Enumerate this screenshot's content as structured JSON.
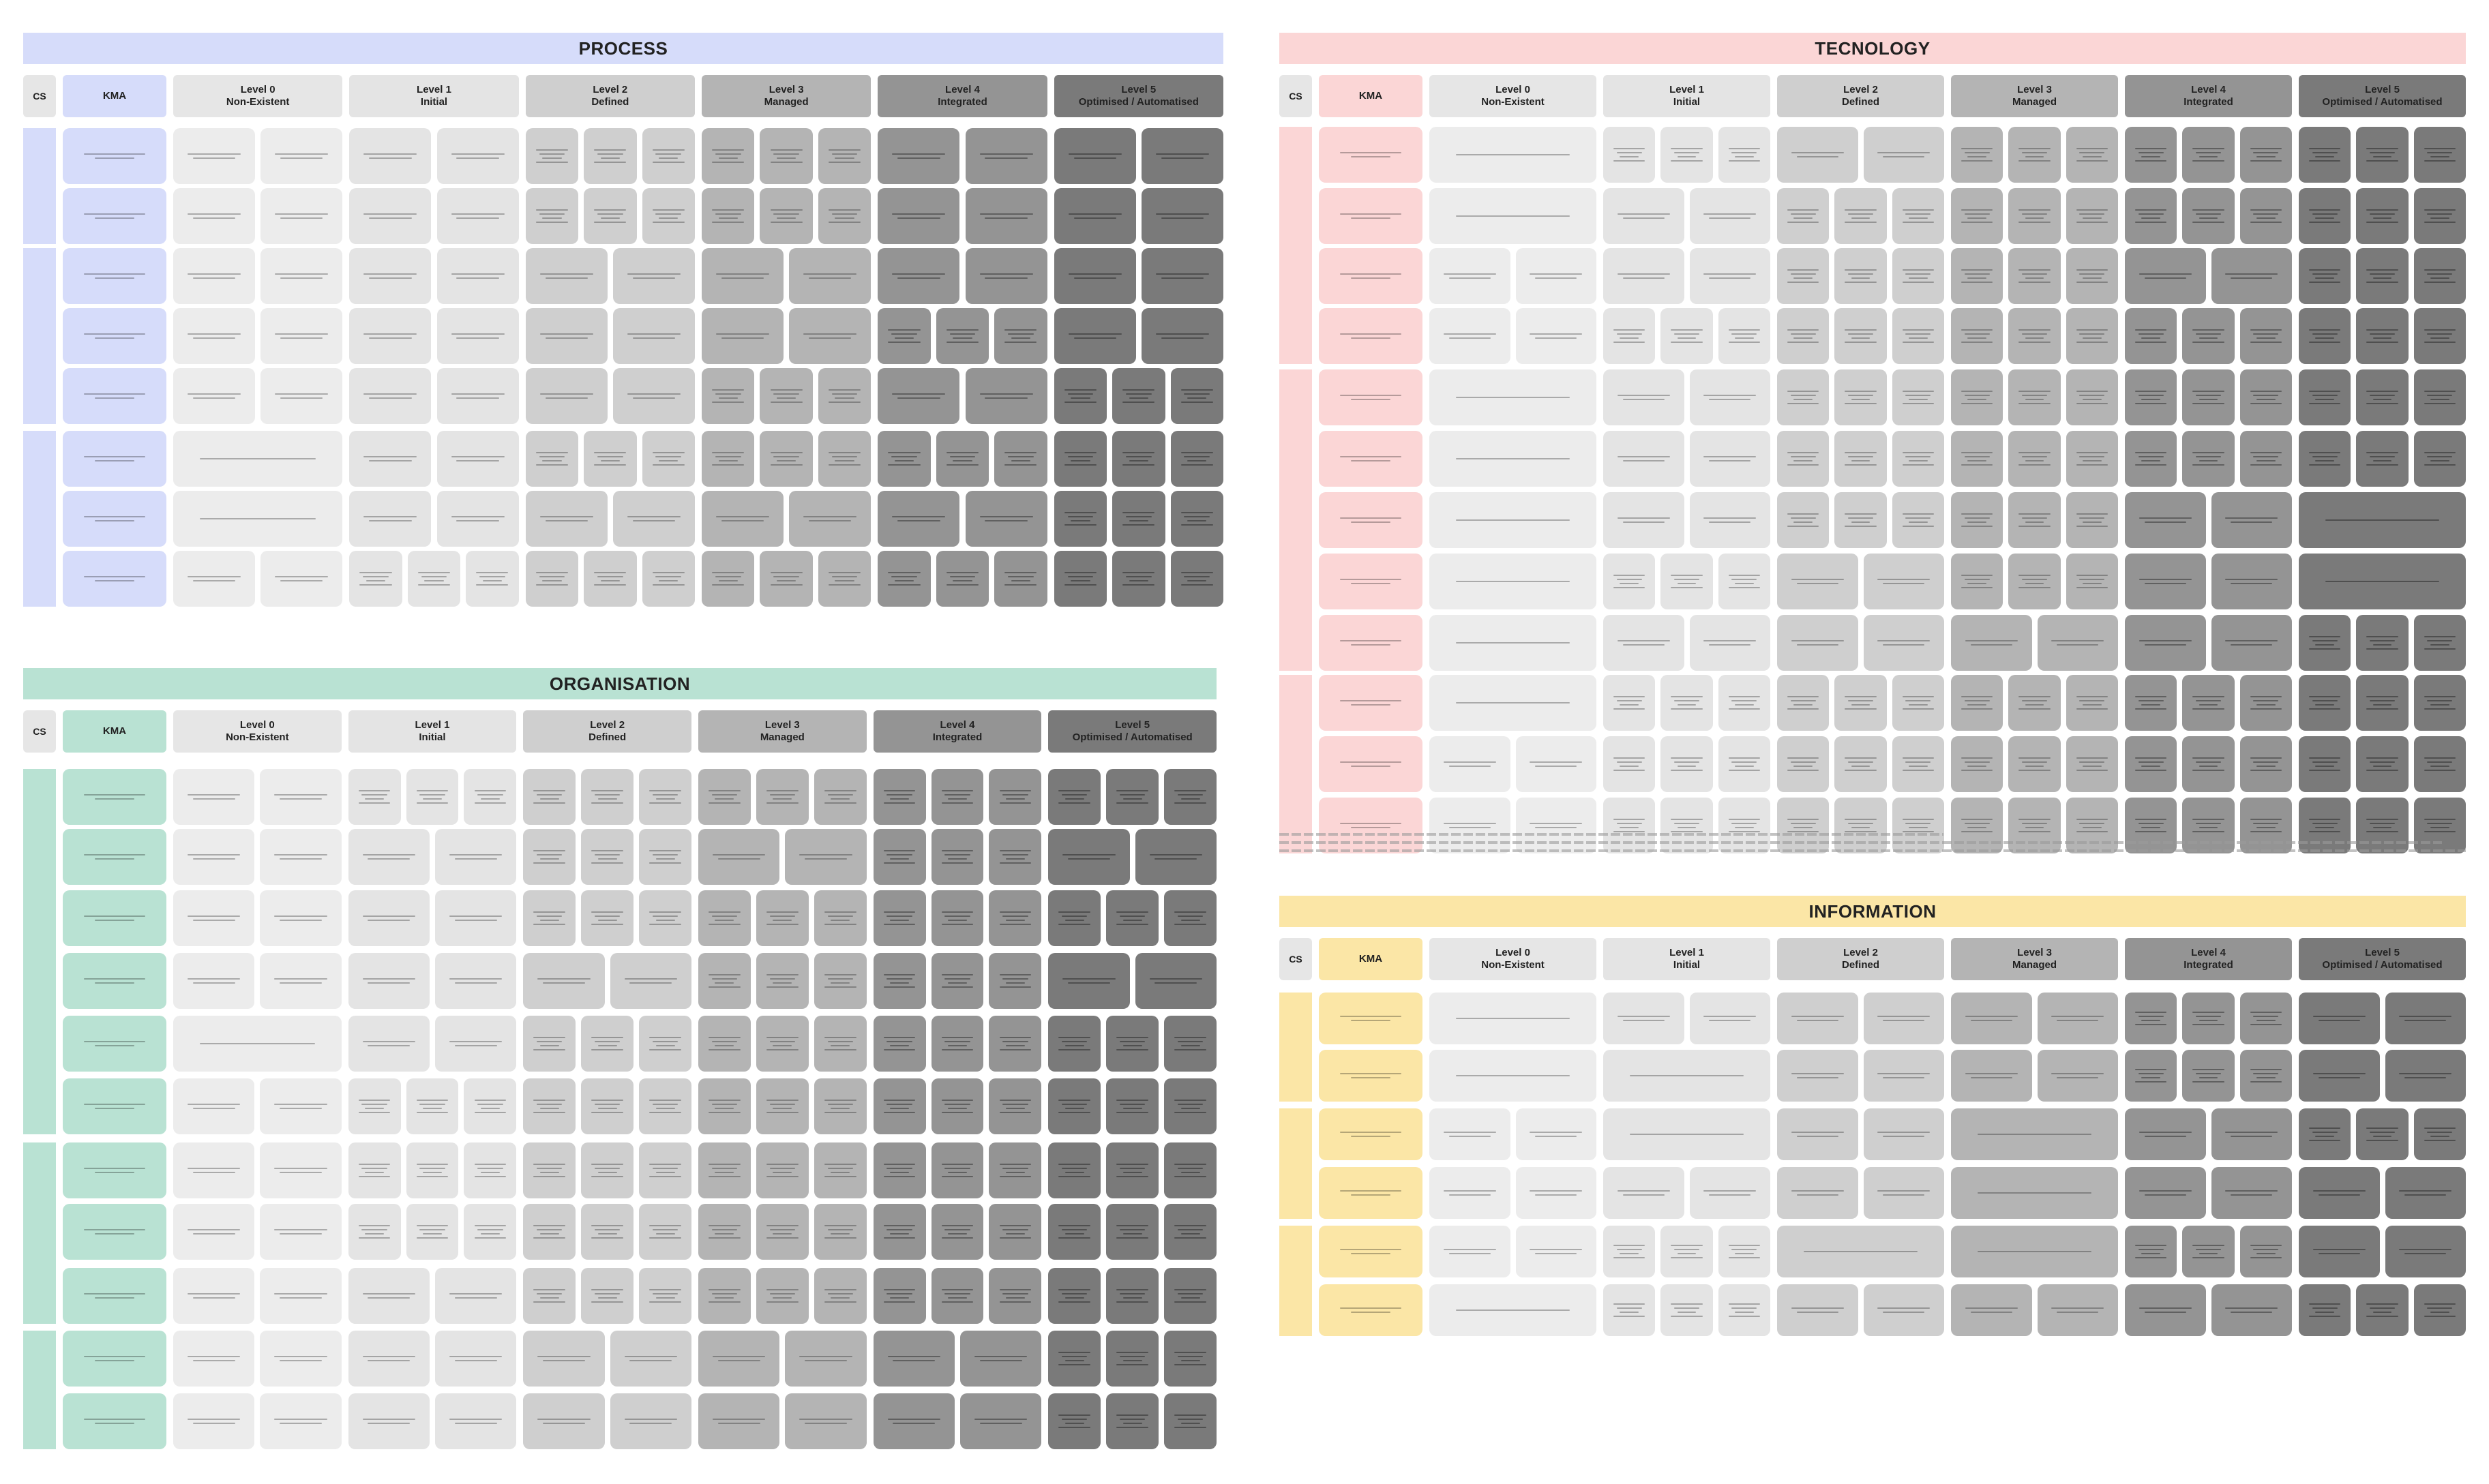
{
  "colors": {
    "process": "#d6dcfa",
    "organisation": "#b9e2d3",
    "technology": "#fbd6d6",
    "information": "#fbe6a6",
    "level_fills": [
      "#ececec",
      "#e4e4e4",
      "#cfcfcf",
      "#b4b4b4",
      "#949494",
      "#7a7a7a"
    ]
  },
  "header": {
    "cs": "CS",
    "kma": "KMA",
    "levels": [
      {
        "name": "Level 0",
        "sub": "Non-Existent"
      },
      {
        "name": "Level 1",
        "sub": "Initial"
      },
      {
        "name": "Level 2",
        "sub": "Defined"
      },
      {
        "name": "Level 3",
        "sub": "Managed"
      },
      {
        "name": "Level 4",
        "sub": "Integrated"
      },
      {
        "name": "Level 5",
        "sub": "Optimised / Automatised"
      }
    ]
  },
  "panels": [
    {
      "id": "process",
      "title": "PROCESS",
      "color_key": "process",
      "cs_groups": [
        2,
        3,
        3
      ],
      "cell_counts": [
        [
          2,
          2,
          3,
          3,
          2,
          2
        ],
        [
          2,
          2,
          3,
          3,
          2,
          2
        ],
        [
          2,
          2,
          2,
          2,
          2,
          2
        ],
        [
          2,
          2,
          2,
          2,
          3,
          2
        ],
        [
          2,
          2,
          2,
          3,
          2,
          3
        ],
        [
          1,
          2,
          3,
          3,
          3,
          3
        ],
        [
          1,
          2,
          2,
          2,
          2,
          3
        ],
        [
          2,
          3,
          3,
          3,
          3,
          3
        ]
      ]
    },
    {
      "id": "organisation",
      "title": "ORGANISATION",
      "color_key": "organisation",
      "cs_groups": [
        6,
        3,
        2
      ],
      "cell_counts": [
        [
          2,
          3,
          3,
          3,
          3,
          3
        ],
        [
          2,
          2,
          3,
          2,
          3,
          2
        ],
        [
          2,
          2,
          3,
          3,
          3,
          3
        ],
        [
          2,
          2,
          2,
          3,
          3,
          2
        ],
        [
          1,
          2,
          3,
          3,
          3,
          3
        ],
        [
          2,
          3,
          3,
          3,
          3,
          3
        ],
        [
          2,
          3,
          3,
          3,
          3,
          3
        ],
        [
          2,
          3,
          3,
          3,
          3,
          3
        ],
        [
          2,
          2,
          3,
          3,
          3,
          3
        ],
        [
          2,
          2,
          2,
          2,
          2,
          3
        ],
        [
          2,
          2,
          2,
          2,
          2,
          3
        ]
      ]
    },
    {
      "id": "technology",
      "title": "TECNOLOGY",
      "color_key": "technology",
      "cs_groups": [
        4,
        5,
        3
      ],
      "cell_counts": [
        [
          1,
          3,
          2,
          3,
          3,
          3
        ],
        [
          1,
          2,
          3,
          3,
          3,
          3
        ],
        [
          2,
          2,
          3,
          3,
          2,
          3
        ],
        [
          2,
          3,
          3,
          3,
          3,
          3
        ],
        [
          1,
          2,
          3,
          3,
          3,
          3
        ],
        [
          1,
          2,
          3,
          3,
          3,
          3
        ],
        [
          1,
          2,
          3,
          3,
          2,
          1
        ],
        [
          1,
          3,
          2,
          3,
          2,
          1
        ],
        [
          1,
          2,
          2,
          2,
          2,
          3
        ],
        [
          1,
          3,
          3,
          3,
          3,
          3
        ],
        [
          2,
          3,
          3,
          3,
          3,
          3
        ],
        [
          2,
          3,
          3,
          3,
          3,
          3
        ]
      ]
    },
    {
      "id": "information",
      "title": "INFORMATION",
      "color_key": "information",
      "cs_groups": [
        2,
        2,
        2
      ],
      "cell_counts": [
        [
          1,
          2,
          2,
          2,
          3,
          2
        ],
        [
          1,
          1,
          2,
          2,
          3,
          2
        ],
        [
          2,
          1,
          2,
          1,
          2,
          3
        ],
        [
          2,
          2,
          2,
          1,
          2,
          2
        ],
        [
          2,
          3,
          1,
          1,
          3,
          2
        ],
        [
          1,
          3,
          2,
          2,
          2,
          3
        ]
      ]
    }
  ]
}
